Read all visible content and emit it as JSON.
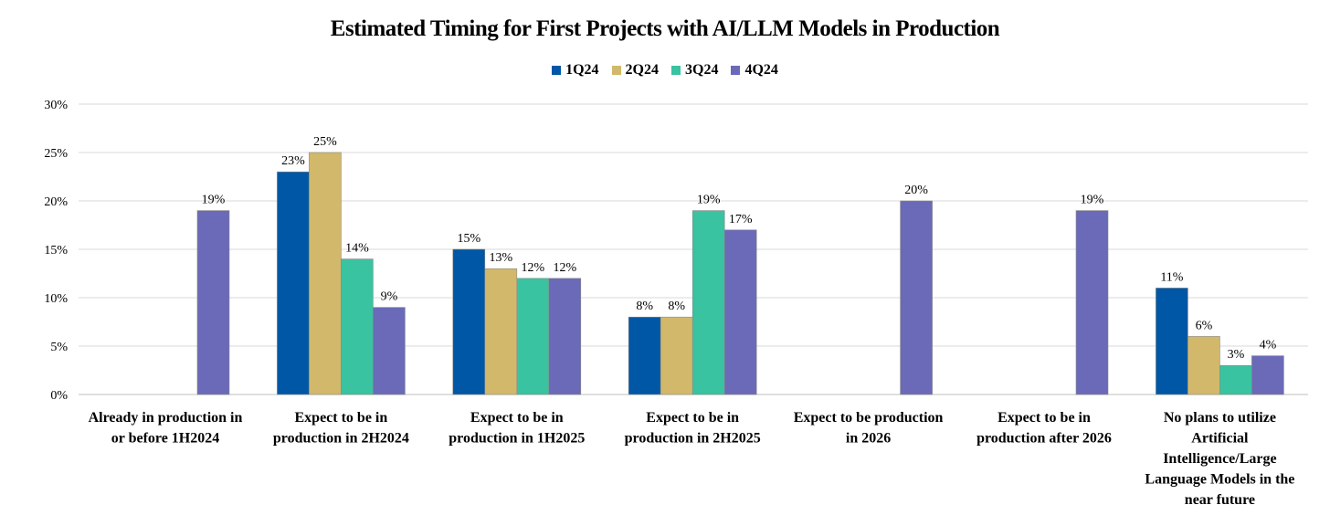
{
  "chart_data": {
    "type": "bar",
    "title": "Estimated Timing for First Projects with AI/LLM Models in Production",
    "xlabel": "",
    "ylabel": "",
    "ylim": [
      0,
      30
    ],
    "ytick_step": 5,
    "ytick_suffix": "%",
    "grid": true,
    "legend_position": "top",
    "categories": [
      [
        "Already in production in",
        "or before 1H2024"
      ],
      [
        "Expect to be in",
        "production in 2H2024"
      ],
      [
        "Expect to be in",
        "production in 1H2025"
      ],
      [
        "Expect to be in",
        "production in 2H2025"
      ],
      [
        "Expect to be production",
        "in 2026"
      ],
      [
        "Expect to be in",
        "production after 2026"
      ],
      [
        "No plans to utilize",
        "Artificial",
        "Intelligence/Large",
        "Language Models in the",
        "near future"
      ]
    ],
    "series": [
      {
        "name": "1Q24",
        "color": "#0057a5",
        "values": [
          null,
          23,
          15,
          8,
          null,
          null,
          11
        ]
      },
      {
        "name": "2Q24",
        "color": "#d2b86a",
        "values": [
          null,
          25,
          13,
          8,
          null,
          null,
          6
        ]
      },
      {
        "name": "3Q24",
        "color": "#39c3a0",
        "values": [
          null,
          14,
          12,
          19,
          null,
          null,
          3
        ]
      },
      {
        "name": "4Q24",
        "color": "#6a6ab8",
        "values": [
          19,
          9,
          12,
          17,
          20,
          19,
          4
        ]
      }
    ]
  }
}
